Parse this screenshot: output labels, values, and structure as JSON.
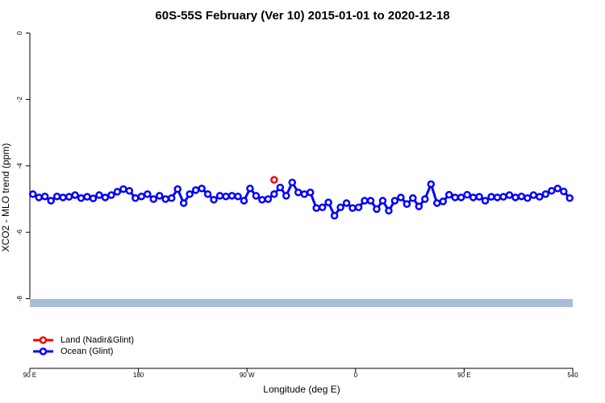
{
  "chart_data": {
    "type": "line",
    "title": "60S-55S February (Ver 10)   2015-01-01 to 2020-12-18",
    "x_label": "Longitude (deg E)",
    "y_label": "XCO2 - MLO trend (ppm)",
    "xlim": [
      90,
      540
    ],
    "xticks": [
      {
        "value": 90,
        "label": "90 E"
      },
      180,
      {
        "value": 270,
        "label": "90 W"
      },
      {
        "value": 360,
        "label": "0"
      },
      {
        "value": 450,
        "label": "90 E"
      },
      540
    ],
    "ylim": [
      -10,
      0
    ],
    "yticks": [
      0,
      -2,
      -4,
      -6,
      -8
    ],
    "legend": "bottom-left",
    "series": [
      {
        "name": "Land (Nadir&Glint)",
        "color": "#ff0000",
        "x": [
          292.5
        ],
        "values": [
          -4.42
        ]
      },
      {
        "name": "Ocean (Glint)",
        "color": "#0000ff",
        "x": [
          92.5,
          97.5,
          102.5,
          107.5,
          112.5,
          117.5,
          122.5,
          127.5,
          132.5,
          137.5,
          142.5,
          147.5,
          152.5,
          157.5,
          162.5,
          167.5,
          172.5,
          177.5,
          182.5,
          187.5,
          192.5,
          197.5,
          202.5,
          207.5,
          212.5,
          217.5,
          222.5,
          227.5,
          232.5,
          237.5,
          242.5,
          247.5,
          252.5,
          257.5,
          262.5,
          267.5,
          272.5,
          277.5,
          282.5,
          287.5,
          292.5,
          297.5,
          302.5,
          307.5,
          312.5,
          317.5,
          322.5,
          327.5,
          332.5,
          337.5,
          342.5,
          347.5,
          352.5,
          357.5,
          362.5,
          367.5,
          372.5,
          377.5,
          382.5,
          387.5,
          392.5,
          397.5,
          402.5,
          407.5,
          412.5,
          417.5,
          422.5,
          427.5,
          432.5,
          437.5,
          442.5,
          447.5,
          452.5,
          457.5,
          462.5,
          467.5,
          472.5,
          477.5,
          482.5,
          487.5,
          492.5,
          497.5,
          502.5,
          507.5,
          512.5,
          517.5,
          522.5,
          527.5,
          532.5,
          537.5
        ],
        "values": [
          -4.85,
          -4.95,
          -4.92,
          -5.05,
          -4.92,
          -4.95,
          -4.93,
          -4.88,
          -4.97,
          -4.93,
          -4.98,
          -4.88,
          -4.95,
          -4.88,
          -4.78,
          -4.7,
          -4.75,
          -4.97,
          -4.92,
          -4.85,
          -5.0,
          -4.9,
          -5.0,
          -4.97,
          -4.7,
          -5.12,
          -4.85,
          -4.73,
          -4.68,
          -4.85,
          -5.02,
          -4.9,
          -4.92,
          -4.9,
          -4.92,
          -5.05,
          -4.68,
          -4.9,
          -5.02,
          -5.0,
          -4.85,
          -4.65,
          -4.9,
          -4.5,
          -4.8,
          -4.85,
          -4.8,
          -5.27,
          -5.25,
          -5.1,
          -5.5,
          -5.25,
          -5.12,
          -5.27,
          -5.25,
          -5.05,
          -5.05,
          -5.3,
          -5.05,
          -5.35,
          -5.05,
          -4.95,
          -5.15,
          -4.97,
          -5.22,
          -5.0,
          -4.55,
          -5.12,
          -5.07,
          -4.87,
          -4.95,
          -4.95,
          -4.87,
          -4.95,
          -4.93,
          -5.05,
          -4.93,
          -4.95,
          -4.93,
          -4.88,
          -4.95,
          -4.92,
          -4.97,
          -4.88,
          -4.93,
          -4.85,
          -4.75,
          -4.68,
          -4.77,
          -4.97
        ]
      }
    ]
  }
}
